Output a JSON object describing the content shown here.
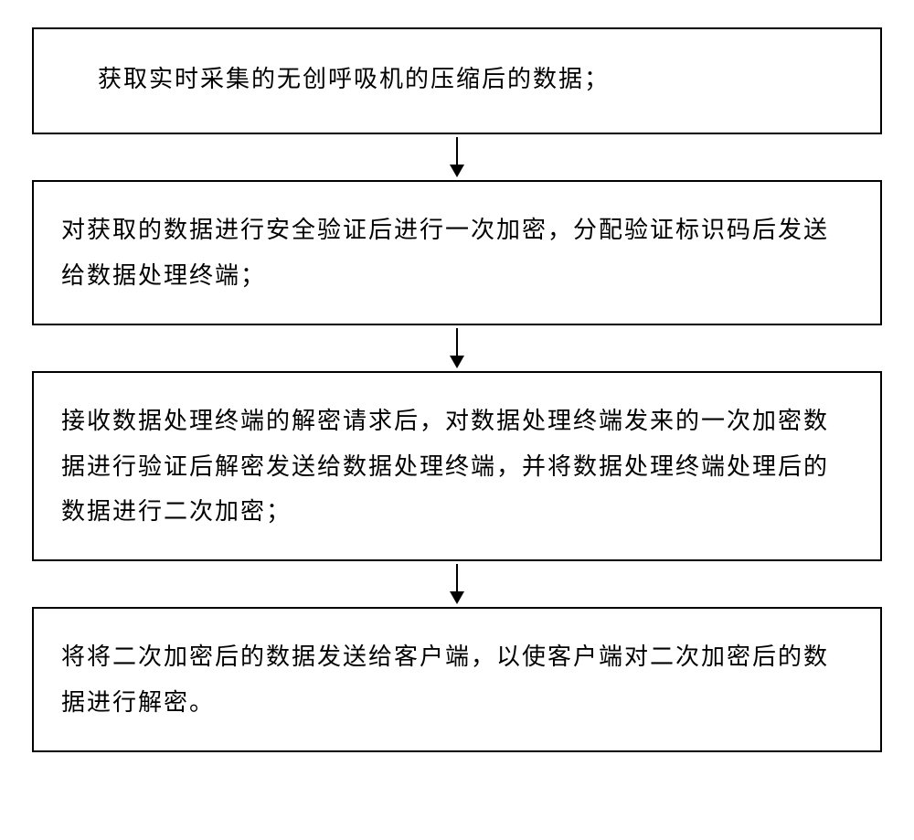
{
  "flowchart": {
    "type": "flowchart",
    "direction": "vertical",
    "background_color": "#ffffff",
    "box_border_color": "#000000",
    "box_border_width": 2,
    "font_family": "SimSun",
    "font_size": 26,
    "line_height": 1.9,
    "arrow_color": "#000000",
    "arrow_height": 50,
    "nodes": [
      {
        "id": "step1",
        "text": "获取实时采集的无创呼吸机的压缩后的数据；"
      },
      {
        "id": "step2",
        "text": "对获取的数据进行安全验证后进行一次加密，分配验证标识码后发送给数据处理终端；"
      },
      {
        "id": "step3",
        "text": "接收数据处理终端的解密请求后，对数据处理终端发来的一次加密数据进行验证后解密发送给数据处理终端，并将数据处理终端处理后的数据进行二次加密；"
      },
      {
        "id": "step4",
        "text": "将将二次加密后的数据发送给客户端，以使客户端对二次加密后的数据进行解密。"
      }
    ],
    "edges": [
      {
        "from": "step1",
        "to": "step2"
      },
      {
        "from": "step2",
        "to": "step3"
      },
      {
        "from": "step3",
        "to": "step4"
      }
    ]
  }
}
